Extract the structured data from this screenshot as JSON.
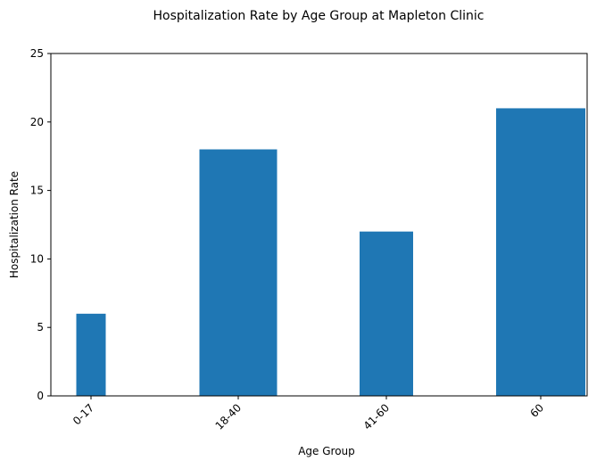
{
  "chart_data": {
    "type": "bar",
    "title": "Hospitalization Rate by Age Group at Mapleton Clinic",
    "xlabel": "Age Group",
    "ylabel": "Hospitalization Rate",
    "categories": [
      "0-17",
      "18-40",
      "41-60",
      "60"
    ],
    "values": [
      6,
      18,
      12,
      21
    ],
    "ylim": [
      0,
      25
    ],
    "yticks": [
      0,
      5,
      10,
      15,
      20,
      25
    ],
    "grid": false,
    "legend": "none",
    "bar_color": "#1f77b4",
    "tick_label_rotation": 45
  }
}
